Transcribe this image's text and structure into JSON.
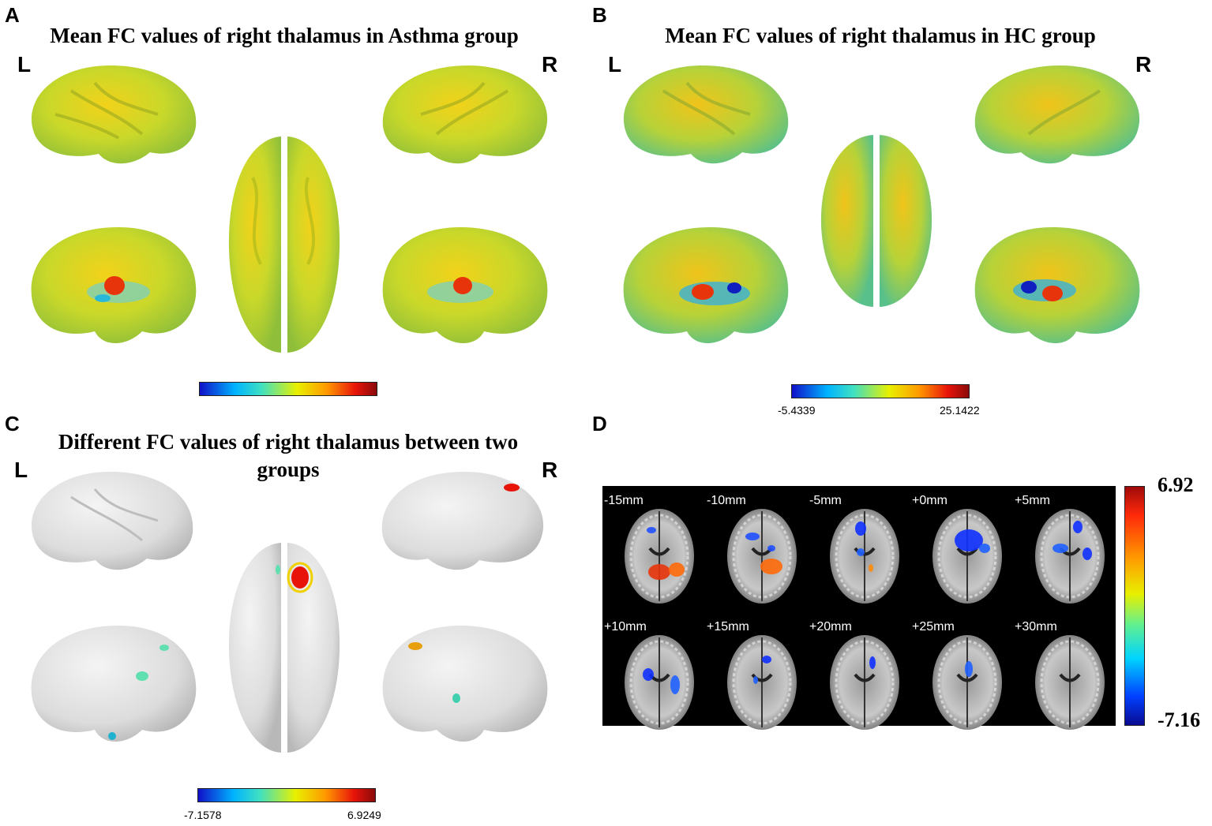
{
  "panels": {
    "a": {
      "letter": "A",
      "title": "Mean FC values of right thalamus in Asthma group",
      "left": "L",
      "right": "R"
    },
    "b": {
      "letter": "B",
      "title": "Mean FC values of right thalamus in HC group",
      "left": "L",
      "right": "R",
      "cbar_min": "-5.4339",
      "cbar_max": "25.1422"
    },
    "c": {
      "letter": "C",
      "title_line1": "Different FC values of right thalamus between two",
      "title_line2": "groups",
      "left": "L",
      "right": "R",
      "cbar_min": "-7.1578",
      "cbar_max": "6.9249"
    },
    "d": {
      "letter": "D",
      "bar_max": "6.92",
      "bar_min": "-7.16",
      "slices": [
        "-15mm",
        "-10mm",
        "-5mm",
        "+0mm",
        "+5mm",
        "+10mm",
        "+15mm",
        "+20mm",
        "+25mm",
        "+30mm"
      ]
    }
  },
  "colors": {
    "brain_fc": "#c8dc2a",
    "brain_grey": "#e6e6e6",
    "slice_bg": "#000000"
  }
}
